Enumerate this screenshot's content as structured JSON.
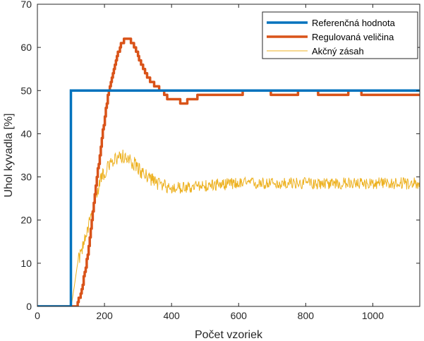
{
  "chart_data": {
    "type": "line",
    "title": "",
    "xlabel": "Počet vzoriek",
    "ylabel": "Uhol kyvadla [%]",
    "xlim": [
      0,
      1140
    ],
    "ylim": [
      0,
      70
    ],
    "xticks": [
      0,
      200,
      400,
      600,
      800,
      1000
    ],
    "yticks": [
      0,
      10,
      20,
      30,
      40,
      50,
      60,
      70
    ],
    "grid": false,
    "legend_position": "top-right",
    "series": [
      {
        "name": "Referenčná hodnota",
        "color": "#0072BD",
        "style": "thick",
        "x": [
          0,
          100,
          100,
          1140
        ],
        "y": [
          0,
          0,
          50,
          50
        ]
      },
      {
        "name": "Regulovaná veličina",
        "color": "#D95319",
        "style": "thick-stepped",
        "x": [
          0,
          115,
          130,
          150,
          170,
          190,
          210,
          230,
          250,
          265,
          275,
          290,
          310,
          330,
          350,
          370,
          380,
          390,
          420,
          430,
          440,
          450,
          470,
          480,
          500,
          600,
          620,
          690,
          700,
          770,
          780,
          830,
          840,
          920,
          930,
          960,
          970,
          1120,
          1130,
          1140
        ],
        "y": [
          0,
          0,
          3,
          12,
          25,
          38,
          49,
          56,
          61,
          62,
          62,
          60,
          56,
          53,
          51,
          50,
          49,
          48,
          48,
          47,
          47,
          48,
          48,
          49,
          49,
          49,
          50,
          50,
          49,
          49,
          50,
          50,
          49,
          49,
          50,
          50,
          49,
          49,
          49,
          49
        ]
      },
      {
        "name": "Akčný zásah",
        "color": "#EDB120",
        "style": "thin-noisy",
        "x": [
          0,
          100,
          105,
          120,
          140,
          150,
          170,
          190,
          210,
          230,
          250,
          270,
          290,
          310,
          330,
          350,
          370,
          400,
          450,
          500,
          600,
          700,
          800,
          900,
          1000,
          1140
        ],
        "y": [
          0,
          0,
          2,
          10,
          15,
          18,
          24,
          30,
          32,
          34,
          35,
          34,
          33,
          31,
          30,
          29,
          28,
          27.5,
          27.5,
          28,
          28.5,
          28.5,
          28.5,
          28.5,
          28.5,
          28.5
        ]
      }
    ]
  }
}
